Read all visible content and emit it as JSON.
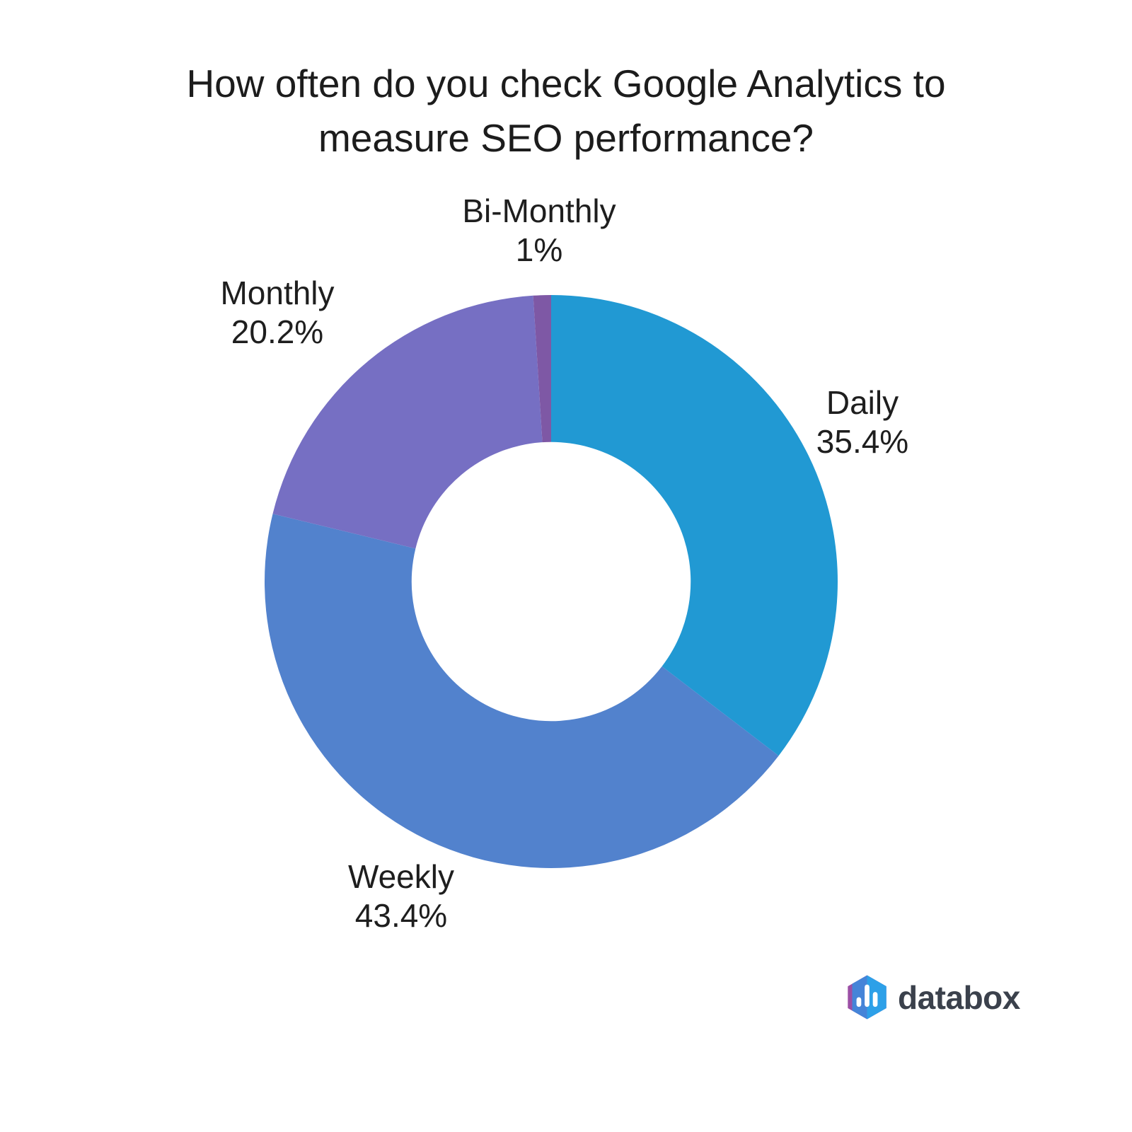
{
  "chart_data": {
    "type": "pie",
    "subtype": "donut",
    "title": "How often do you check Google Analytics to measure SEO performance?",
    "start_angle_deg": 0,
    "direction": "clockwise",
    "inner_radius_ratio": 0.487,
    "legend_position": "none-outside-data-labels",
    "slices": [
      {
        "label": "Daily",
        "value": 35.4,
        "pct_label": "35.4%",
        "color": "#2199d3"
      },
      {
        "label": "Weekly",
        "value": 43.4,
        "pct_label": "43.4%",
        "color": "#5282cd"
      },
      {
        "label": "Monthly",
        "value": 20.2,
        "pct_label": "20.2%",
        "color": "#766fc3"
      },
      {
        "label": "Bi-Monthly",
        "value": 1,
        "pct_label": "1%",
        "color": "#7e58a5"
      }
    ]
  },
  "branding": {
    "name": "databox",
    "icon": "databox-hexagon-bar-chart-icon",
    "text_color": "#3b414c",
    "icon_colors": {
      "accent": "#9b4fa5",
      "left": "#4584d8",
      "right": "#2da0e8",
      "bars": "#ffffff"
    }
  }
}
